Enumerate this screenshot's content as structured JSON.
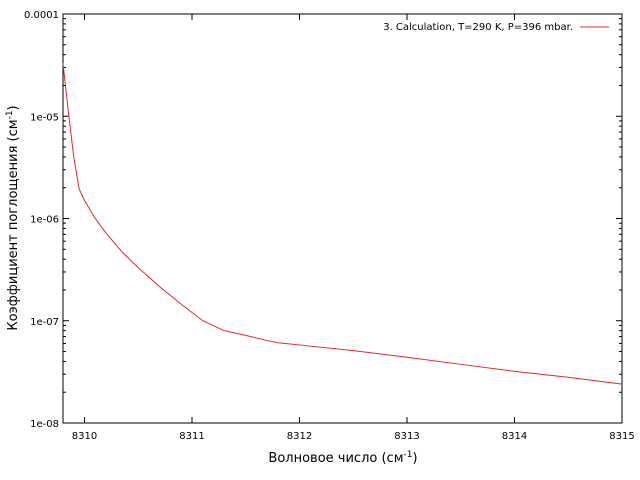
{
  "chart_data": {
    "type": "line",
    "title": "",
    "xlabel": "Волновое число (см",
    "xlabel_sup": "-1",
    "xlabel_tail": ")",
    "ylabel": "Коэффициент поглощения (см",
    "ylabel_sup": "-1",
    "ylabel_tail": ")",
    "xlim": [
      8309.8,
      8315
    ],
    "ylim": [
      1e-08,
      0.0001
    ],
    "yscale": "log",
    "grid": false,
    "legend_position": "top-right",
    "x_ticks": [
      8310,
      8311,
      8312,
      8313,
      8314,
      8315
    ],
    "x_tick_labels": [
      "8310",
      "8311",
      "8312",
      "8313",
      "8314",
      "8315"
    ],
    "y_ticks": [
      1e-08,
      1e-07,
      1e-06,
      1e-05,
      0.0001
    ],
    "y_tick_labels": [
      "1e-08",
      "1e-07",
      "1e-06",
      "1e-05",
      "0.0001"
    ],
    "series": [
      {
        "name": "3. Calculation, T=290 K, P=396 mbar.",
        "color": "#e8262b",
        "x": [
          8309.8,
          8309.85,
          8309.9,
          8309.95,
          8310.0,
          8310.1,
          8310.2,
          8310.35,
          8310.5,
          8310.7,
          8310.9,
          8311.1,
          8311.3,
          8311.5,
          8311.7,
          8311.8,
          8312.0,
          8312.5,
          8313.0,
          8313.5,
          8314.0,
          8314.5,
          8315.0
        ],
        "y": [
          3.3e-05,
          1.1e-05,
          4e-06,
          1.95e-06,
          1.5e-06,
          1e-06,
          7.2e-07,
          4.7e-07,
          3.3e-07,
          2.15e-07,
          1.45e-07,
          1e-07,
          8e-08,
          7.2e-08,
          6.4e-08,
          6.1e-08,
          5.8e-08,
          5.1e-08,
          4.4e-08,
          3.75e-08,
          3.2e-08,
          2.8e-08,
          2.4e-08
        ]
      }
    ]
  }
}
